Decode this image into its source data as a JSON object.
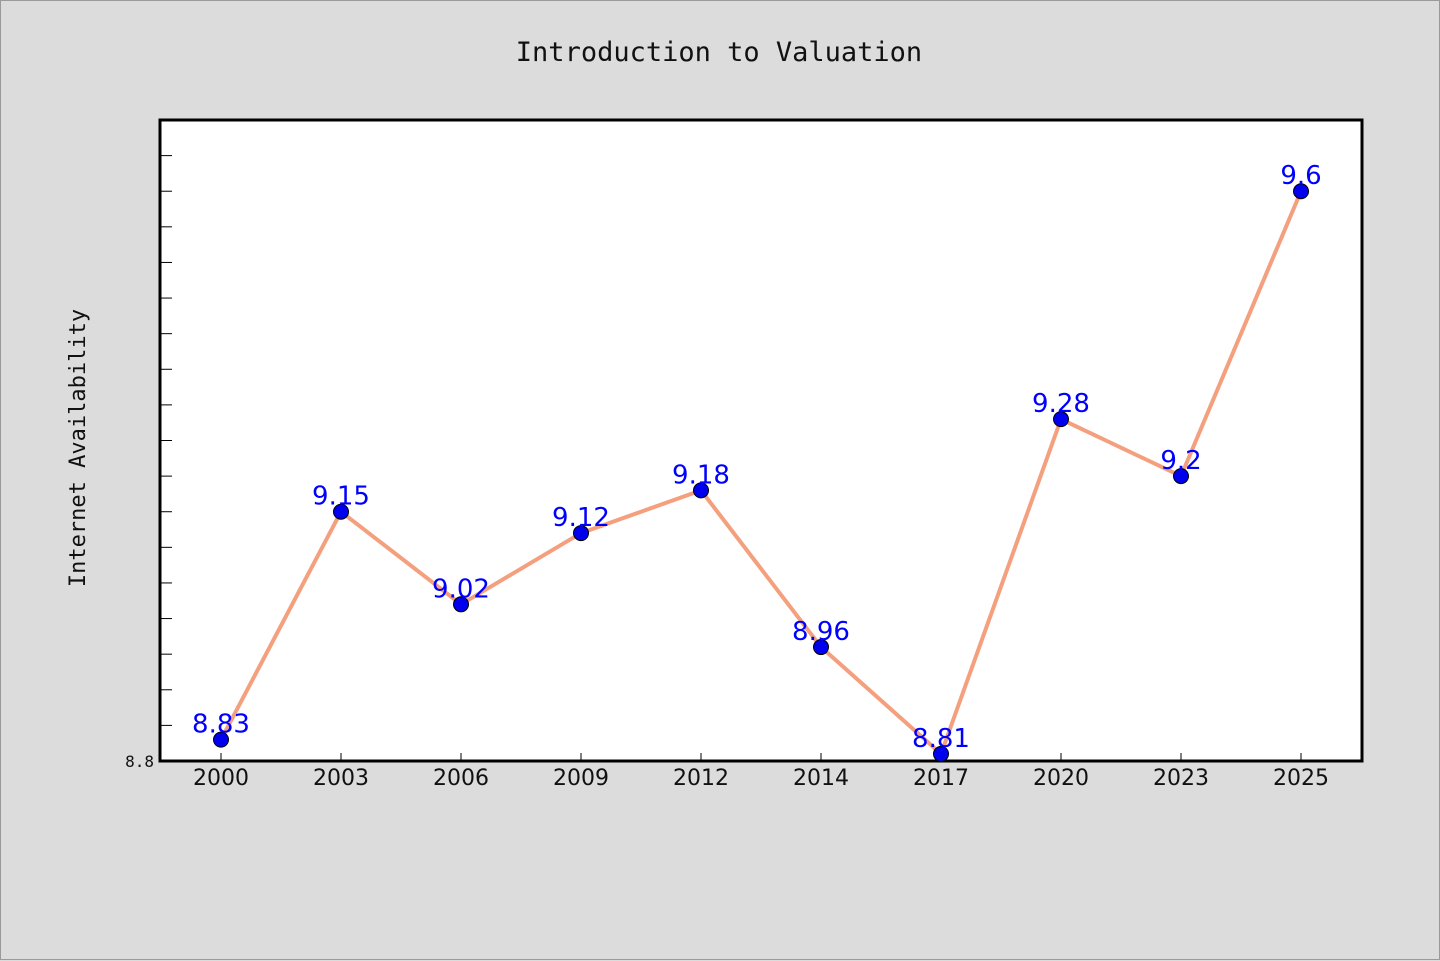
{
  "chart_data": {
    "type": "line",
    "title": "Introduction to Valuation",
    "xlabel": "",
    "ylabel": "Internet Availability",
    "categories": [
      "2000",
      "2003",
      "2006",
      "2009",
      "2012",
      "2014",
      "2017",
      "2020",
      "2023",
      "2025"
    ],
    "series": [
      {
        "values": [
          8.83,
          9.15,
          9.02,
          9.12,
          9.18,
          8.96,
          8.81,
          9.28,
          9.2,
          9.6
        ],
        "data_labels": [
          "8.83",
          "9.15",
          "9.02",
          "9.12",
          "9.18",
          "8.96",
          "8.81",
          "9.28",
          "9.2",
          "9.6"
        ],
        "line_color": "#f4a07e",
        "marker_color": "#0000ee"
      }
    ],
    "y_tick_labels": [
      "8.8"
    ],
    "ylim": [
      8.8,
      9.7
    ],
    "grid": false,
    "legend": "none"
  },
  "colors": {
    "background": "#dcdcdc",
    "plot_background": "#ffffff",
    "line": "#f4a07e",
    "marker": "#0000ee",
    "data_label": "#0000ff"
  }
}
